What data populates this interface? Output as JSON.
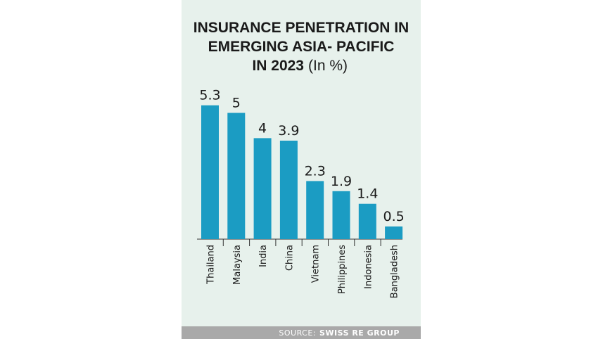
{
  "chart_data": {
    "type": "bar",
    "title_lines": [
      "INSURANCE PENETRATION IN",
      "EMERGING ASIA- PACIFIC",
      "IN 2023"
    ],
    "subtitle": "(In %)",
    "categories": [
      "Thailand",
      "Malaysia",
      "India",
      "China",
      "Vietnam",
      "Philippines",
      "Indonesia",
      "Bangladesh"
    ],
    "values": [
      5.3,
      5,
      4,
      3.9,
      2.3,
      1.9,
      1.4,
      0.5
    ],
    "color": "#1b9cc3",
    "source_label": "SOURCE:",
    "source": "SWISS RE GROUP"
  }
}
